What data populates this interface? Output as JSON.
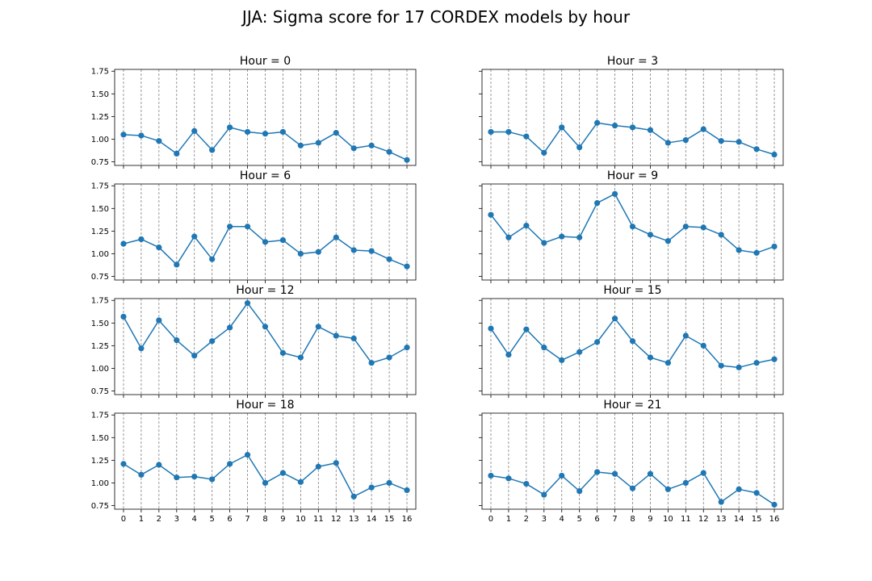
{
  "figure": {
    "title": "JJA: Sigma score for 17 CORDEX models by hour"
  },
  "colors": {
    "series": "#1f77b4",
    "grid": "#808080",
    "axes": "#000000"
  },
  "chart_data": [
    {
      "type": "line",
      "title": "Hour = 0",
      "x": [
        0,
        1,
        2,
        3,
        4,
        5,
        6,
        7,
        8,
        9,
        10,
        11,
        12,
        13,
        14,
        15,
        16
      ],
      "values": [
        1.05,
        1.04,
        0.98,
        0.84,
        1.09,
        0.88,
        1.13,
        1.08,
        1.06,
        1.08,
        0.93,
        0.96,
        1.07,
        0.9,
        0.93,
        0.86,
        0.77
      ],
      "ylim": [
        0.71,
        1.77
      ],
      "yticks": [
        "0.75",
        "1.00",
        "1.25",
        "1.50",
        "1.75"
      ],
      "grid": "x-dashed",
      "marker": "circle"
    },
    {
      "type": "line",
      "title": "Hour = 3",
      "x": [
        0,
        1,
        2,
        3,
        4,
        5,
        6,
        7,
        8,
        9,
        10,
        11,
        12,
        13,
        14,
        15,
        16
      ],
      "values": [
        1.08,
        1.08,
        1.03,
        0.85,
        1.13,
        0.91,
        1.18,
        1.15,
        1.13,
        1.1,
        0.96,
        0.99,
        1.11,
        0.98,
        0.97,
        0.89,
        0.83
      ],
      "ylim": [
        0.71,
        1.77
      ],
      "yticks": [
        "0.75",
        "1.00",
        "1.25",
        "1.50",
        "1.75"
      ],
      "grid": "x-dashed",
      "marker": "circle"
    },
    {
      "type": "line",
      "title": "Hour = 6",
      "x": [
        0,
        1,
        2,
        3,
        4,
        5,
        6,
        7,
        8,
        9,
        10,
        11,
        12,
        13,
        14,
        15,
        16
      ],
      "values": [
        1.11,
        1.16,
        1.07,
        0.88,
        1.19,
        0.94,
        1.3,
        1.3,
        1.13,
        1.15,
        1.0,
        1.02,
        1.18,
        1.04,
        1.03,
        0.94,
        0.86
      ],
      "ylim": [
        0.71,
        1.77
      ],
      "yticks": [
        "0.75",
        "1.00",
        "1.25",
        "1.50",
        "1.75"
      ],
      "grid": "x-dashed",
      "marker": "circle"
    },
    {
      "type": "line",
      "title": "Hour = 9",
      "x": [
        0,
        1,
        2,
        3,
        4,
        5,
        6,
        7,
        8,
        9,
        10,
        11,
        12,
        13,
        14,
        15,
        16
      ],
      "values": [
        1.43,
        1.18,
        1.31,
        1.12,
        1.19,
        1.18,
        1.56,
        1.66,
        1.3,
        1.21,
        1.14,
        1.3,
        1.29,
        1.21,
        1.04,
        1.01,
        1.08
      ],
      "ylim": [
        0.71,
        1.77
      ],
      "yticks": [
        "0.75",
        "1.00",
        "1.25",
        "1.50",
        "1.75"
      ],
      "grid": "x-dashed",
      "marker": "circle"
    },
    {
      "type": "line",
      "title": "Hour = 12",
      "x": [
        0,
        1,
        2,
        3,
        4,
        5,
        6,
        7,
        8,
        9,
        10,
        11,
        12,
        13,
        14,
        15,
        16
      ],
      "values": [
        1.57,
        1.22,
        1.53,
        1.31,
        1.14,
        1.3,
        1.45,
        1.72,
        1.46,
        1.17,
        1.12,
        1.46,
        1.36,
        1.33,
        1.06,
        1.12,
        1.23
      ],
      "ylim": [
        0.71,
        1.77
      ],
      "yticks": [
        "0.75",
        "1.00",
        "1.25",
        "1.50",
        "1.75"
      ],
      "grid": "x-dashed",
      "marker": "circle"
    },
    {
      "type": "line",
      "title": "Hour = 15",
      "x": [
        0,
        1,
        2,
        3,
        4,
        5,
        6,
        7,
        8,
        9,
        10,
        11,
        12,
        13,
        14,
        15,
        16
      ],
      "values": [
        1.44,
        1.15,
        1.43,
        1.23,
        1.09,
        1.18,
        1.29,
        1.55,
        1.3,
        1.12,
        1.06,
        1.36,
        1.25,
        1.03,
        1.01,
        1.06,
        1.1
      ],
      "ylim": [
        0.71,
        1.77
      ],
      "yticks": [
        "0.75",
        "1.00",
        "1.25",
        "1.50",
        "1.75"
      ],
      "grid": "x-dashed",
      "marker": "circle"
    },
    {
      "type": "line",
      "title": "Hour = 18",
      "x": [
        0,
        1,
        2,
        3,
        4,
        5,
        6,
        7,
        8,
        9,
        10,
        11,
        12,
        13,
        14,
        15,
        16
      ],
      "values": [
        1.21,
        1.09,
        1.2,
        1.06,
        1.07,
        1.04,
        1.21,
        1.31,
        1.0,
        1.11,
        1.01,
        1.18,
        1.22,
        0.85,
        0.95,
        1.0,
        0.92
      ],
      "ylim": [
        0.71,
        1.77
      ],
      "yticks": [
        "0.75",
        "1.00",
        "1.25",
        "1.50",
        "1.75"
      ],
      "grid": "x-dashed",
      "marker": "circle"
    },
    {
      "type": "line",
      "title": "Hour = 21",
      "x": [
        0,
        1,
        2,
        3,
        4,
        5,
        6,
        7,
        8,
        9,
        10,
        11,
        12,
        13,
        14,
        15,
        16
      ],
      "values": [
        1.08,
        1.05,
        0.99,
        0.87,
        1.08,
        0.91,
        1.12,
        1.1,
        0.94,
        1.1,
        0.93,
        1.0,
        1.11,
        0.79,
        0.93,
        0.89,
        0.76
      ],
      "ylim": [
        0.71,
        1.77
      ],
      "yticks": [
        "0.75",
        "1.00",
        "1.25",
        "1.50",
        "1.75"
      ],
      "grid": "x-dashed",
      "marker": "circle"
    }
  ]
}
